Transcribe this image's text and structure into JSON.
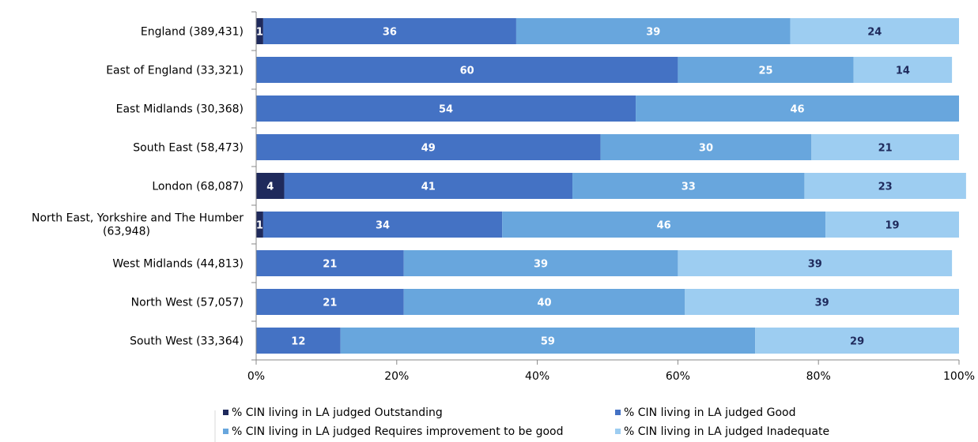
{
  "chart_data": {
    "type": "bar",
    "orientation": "horizontal",
    "stacked": true,
    "categories": [
      "England (389,431)",
      "East of England (33,321)",
      "East Midlands (30,368)",
      "South East (58,473)",
      "London (68,087)",
      "North East, Yorkshire and The Humber (63,948)",
      "West Midlands (44,813)",
      "North West (57,057)",
      "South West (33,364)"
    ],
    "series": [
      {
        "name": "% CIN living in LA judged Outstanding",
        "color": "#1f2a5c",
        "label_color": "#ffffff",
        "values": [
          1,
          0,
          0,
          0,
          4,
          1,
          0,
          0,
          0
        ]
      },
      {
        "name": "% CIN living in LA judged Good",
        "color": "#4472c4",
        "label_color": "#ffffff",
        "values": [
          36,
          60,
          54,
          49,
          41,
          34,
          21,
          21,
          12
        ]
      },
      {
        "name": "% CIN living in LA judged Requires improvement to be good",
        "color": "#68a6dd",
        "label_color": "#ffffff",
        "values": [
          39,
          25,
          46,
          30,
          33,
          46,
          39,
          40,
          59
        ]
      },
      {
        "name": "% CIN living in LA judged Inadequate",
        "color": "#9dcdf1",
        "label_color": "#1f2a5c",
        "values": [
          24,
          14,
          0,
          21,
          23,
          19,
          39,
          39,
          29
        ]
      }
    ],
    "xlim": [
      0,
      100
    ],
    "xticks": [
      "0%",
      "20%",
      "40%",
      "60%",
      "80%",
      "100%"
    ],
    "grid": false,
    "legend_position": "bottom"
  }
}
